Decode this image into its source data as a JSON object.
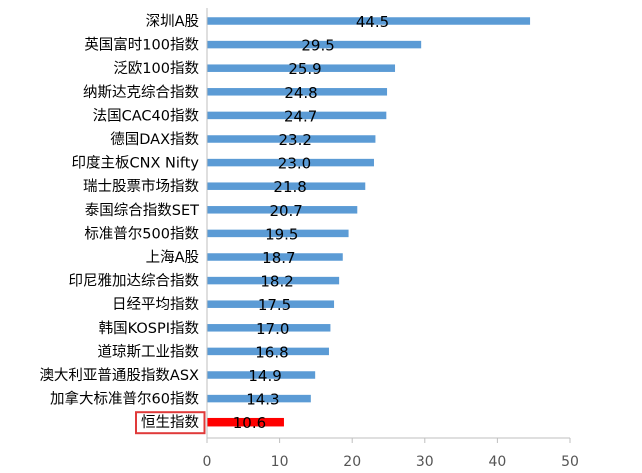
{
  "chart_data": {
    "type": "bar",
    "orientation": "horizontal",
    "categories": [
      "深圳A股",
      "英国富时100指数",
      "泛欧100指数",
      "纳斯达克综合指数",
      "法国CAC40指数",
      "德国DAX指数",
      "印度主板CNX Nifty",
      "瑞士股票市场指数",
      "泰国综合指数SET",
      "标准普尔500指数",
      "上海A股",
      "印尼雅加达综合指数",
      "日经平均指数",
      "韩国KOSPI指数",
      "道琼斯工业指数",
      "澳大利亚普通股指数ASX",
      "加拿大标准普尔60指数",
      "恒生指数"
    ],
    "values": [
      44.5,
      29.5,
      25.9,
      24.8,
      24.7,
      23.2,
      23.0,
      21.8,
      20.7,
      19.5,
      18.7,
      18.2,
      17.5,
      17.0,
      16.8,
      14.9,
      14.3,
      10.6
    ],
    "value_labels": [
      "44.5",
      "29.5",
      "25.9",
      "24.8",
      "24.7",
      "23.2",
      "23.0",
      "21.8",
      "20.7",
      "19.5",
      "18.7",
      "18.2",
      "17.5",
      "17.0",
      "16.8",
      "14.9",
      "14.3",
      "10.6"
    ],
    "xlim": [
      0,
      50
    ],
    "xticks": [
      "0",
      "10",
      "20",
      "30",
      "40",
      "50"
    ],
    "highlight_index": 17,
    "colors": {
      "bar": "#5b9bd5",
      "highlight": "#ff0000",
      "highlight_box": "#e03a3a",
      "axis": "#bfbfbf"
    },
    "title": "",
    "xlabel": "",
    "ylabel": "",
    "grid": false,
    "legend": "none"
  }
}
